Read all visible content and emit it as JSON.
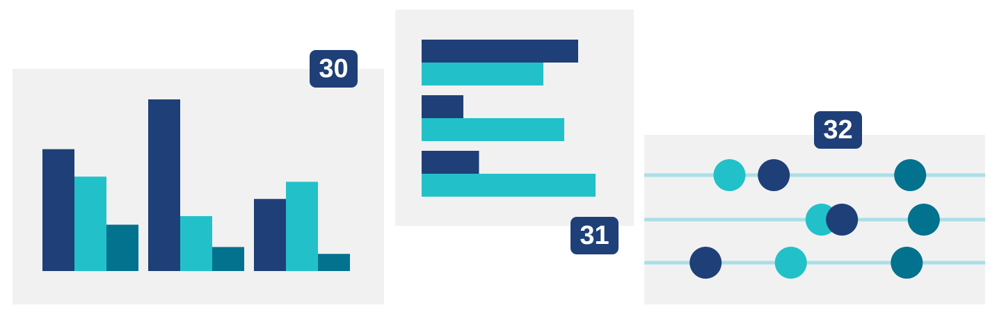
{
  "colors": {
    "navy": "#1f3f78",
    "cyan": "#22c1c9",
    "teal": "#03728f",
    "panel": "#f1f1f1",
    "track": "#a8dfe6"
  },
  "badges": {
    "b30": "30",
    "b31": "31",
    "b32": "32"
  },
  "chart_data": [
    {
      "type": "bar",
      "orientation": "vertical",
      "grid": false,
      "ylim": [
        0,
        100
      ],
      "categories": [
        "",
        "",
        ""
      ],
      "series": [
        {
          "values": [
            71,
            100,
            42
          ],
          "color": "#1f3f78"
        },
        {
          "values": [
            55,
            32,
            52
          ],
          "color": "#22c1c9"
        },
        {
          "values": [
            27,
            14,
            10
          ],
          "color": "#03728f"
        }
      ]
    },
    {
      "type": "bar",
      "orientation": "horizontal",
      "grid": false,
      "xlim": [
        0,
        100
      ],
      "categories": [
        "",
        "",
        ""
      ],
      "series": [
        {
          "values": [
            90,
            24,
            33
          ],
          "color": "#1f3f78"
        },
        {
          "values": [
            70,
            82,
            100
          ],
          "color": "#22c1c9"
        }
      ]
    },
    {
      "type": "scatter",
      "grid": false,
      "xlim": [
        0,
        100
      ],
      "rows": 3,
      "series": [
        {
          "color": "#22c1c9",
          "points": [
            {
              "row": 0,
              "x": 25
            },
            {
              "row": 1,
              "x": 52
            },
            {
              "row": 2,
              "x": 43
            }
          ]
        },
        {
          "color": "#1f3f78",
          "points": [
            {
              "row": 0,
              "x": 38
            },
            {
              "row": 1,
              "x": 58
            },
            {
              "row": 2,
              "x": 18
            }
          ]
        },
        {
          "color": "#03728f",
          "points": [
            {
              "row": 0,
              "x": 78
            },
            {
              "row": 1,
              "x": 82
            },
            {
              "row": 2,
              "x": 77
            }
          ]
        }
      ]
    }
  ]
}
